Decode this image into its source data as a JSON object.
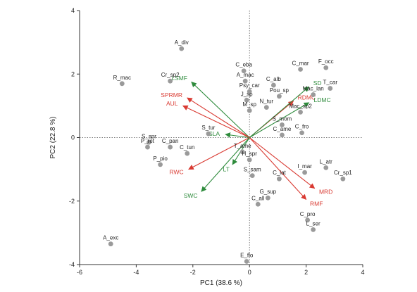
{
  "chart_data": {
    "type": "scatter",
    "xlabel": "PC1 (38.6 %)",
    "ylabel": "PC2 (22.8 %)",
    "xlim": [
      -6,
      4
    ],
    "ylim": [
      -4,
      4
    ],
    "xticks": [
      -6,
      -4,
      -2,
      0,
      2,
      4
    ],
    "yticks": [
      -4,
      -2,
      0,
      2,
      4
    ],
    "point_color": "#9a9a9a",
    "colors": {
      "red": "#d93a32",
      "green": "#2e8b3c"
    },
    "points": [
      {
        "label": "A_div",
        "x": -2.4,
        "y": 2.8
      },
      {
        "label": "R_mac",
        "x": -4.5,
        "y": 1.7
      },
      {
        "label": "Cr_sp2",
        "x": -2.8,
        "y": 1.78
      },
      {
        "label": "C_eba",
        "x": -0.2,
        "y": 2.1
      },
      {
        "label": "A_mac",
        "x": -0.15,
        "y": 1.78
      },
      {
        "label": "Psy_car",
        "x": 0.0,
        "y": 1.45
      },
      {
        "label": "J_sp",
        "x": -0.1,
        "y": 1.18
      },
      {
        "label": "C_alb",
        "x": 0.85,
        "y": 1.65
      },
      {
        "label": "Pou_sp",
        "x": 1.05,
        "y": 1.3
      },
      {
        "label": "N_tur",
        "x": 0.6,
        "y": 0.95
      },
      {
        "label": "M_sp",
        "x": 0.0,
        "y": 0.85
      },
      {
        "label": "C_mar",
        "x": 1.8,
        "y": 2.15
      },
      {
        "label": "F_occ",
        "x": 2.7,
        "y": 2.2
      },
      {
        "label": "T_car",
        "x": 2.85,
        "y": 1.55
      },
      {
        "label": "Mac_lan",
        "x": 2.25,
        "y": 1.35
      },
      {
        "label": "Mac_sp2",
        "x": 1.8,
        "y": 0.8
      },
      {
        "label": "S_mom",
        "x": 1.15,
        "y": 0.4
      },
      {
        "label": "C_fro",
        "x": 1.85,
        "y": 0.15
      },
      {
        "label": "C_ame",
        "x": 1.15,
        "y": 0.08
      },
      {
        "label": "S_tur",
        "x": -1.45,
        "y": 0.12
      },
      {
        "label": "S_spr",
        "x": -3.55,
        "y": -0.15
      },
      {
        "label": "C_pan",
        "x": -2.8,
        "y": -0.3
      },
      {
        "label": "P_ret",
        "x": -3.6,
        "y": -0.3
      },
      {
        "label": "C_tun",
        "x": -2.2,
        "y": -0.5
      },
      {
        "label": "P_pio",
        "x": -3.15,
        "y": -0.85
      },
      {
        "label": "T_ame",
        "x": -0.25,
        "y": -0.45
      },
      {
        "label": "H_spr",
        "x": 0.0,
        "y": -0.7
      },
      {
        "label": "S_sam",
        "x": 0.1,
        "y": -1.2
      },
      {
        "label": "C_lat",
        "x": 1.05,
        "y": -1.3
      },
      {
        "label": "I_mar",
        "x": 1.95,
        "y": -1.1
      },
      {
        "label": "L_atr",
        "x": 2.7,
        "y": -0.95
      },
      {
        "label": "Cr_sp1",
        "x": 3.3,
        "y": -1.3
      },
      {
        "label": "G_sup",
        "x": 0.65,
        "y": -1.9
      },
      {
        "label": "C_all",
        "x": 0.3,
        "y": -2.1
      },
      {
        "label": "C_pro",
        "x": 2.05,
        "y": -2.6
      },
      {
        "label": "L_ser",
        "x": 2.25,
        "y": -2.9
      },
      {
        "label": "A_exc",
        "x": -4.9,
        "y": -3.35
      },
      {
        "label": "E_flo",
        "x": -0.1,
        "y": -3.9
      }
    ],
    "vectors": [
      {
        "label": "LSMF",
        "x": -2.05,
        "y": 1.75,
        "color": "green"
      },
      {
        "label": "SPRMR",
        "x": -2.2,
        "y": 1.25,
        "color": "red"
      },
      {
        "label": "AUL",
        "x": -2.35,
        "y": 1.0,
        "color": "red"
      },
      {
        "label": "RDMC",
        "x": 1.55,
        "y": 1.15,
        "color": "red"
      },
      {
        "label": "SD",
        "x": 2.1,
        "y": 1.6,
        "color": "green"
      },
      {
        "label": "LDMC",
        "x": 2.1,
        "y": 1.1,
        "color": "green"
      },
      {
        "label": "SLA",
        "x": -0.85,
        "y": 0.1,
        "color": "green"
      },
      {
        "label": "RWC",
        "x": -2.15,
        "y": -1.0,
        "color": "red"
      },
      {
        "label": "SWC",
        "x": -1.7,
        "y": -1.7,
        "color": "green"
      },
      {
        "label": "LT",
        "x": -0.6,
        "y": -0.85,
        "color": "green"
      },
      {
        "label": "MRD",
        "x": 2.3,
        "y": -1.6,
        "color": "red"
      },
      {
        "label": "RMF",
        "x": 2.0,
        "y": -1.95,
        "color": "red"
      }
    ]
  }
}
